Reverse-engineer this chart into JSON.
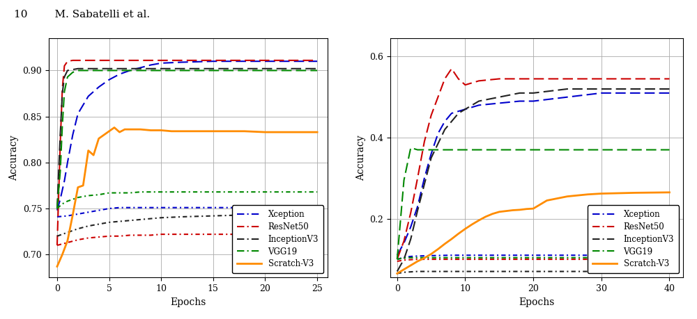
{
  "header_text": "10        M. Sabatelli et al.",
  "chart1": {
    "xlim": [
      -0.8,
      26
    ],
    "ylim": [
      0.675,
      0.935
    ],
    "xticks": [
      0,
      5,
      10,
      15,
      20,
      25
    ],
    "yticks": [
      0.7,
      0.75,
      0.8,
      0.85,
      0.9
    ],
    "xlabel": "Epochs",
    "ylabel": "Accuracy",
    "series": {
      "Xception_high": {
        "color": "#0000cc",
        "x": [
          0,
          0.3,
          0.7,
          1,
          1.5,
          2,
          3,
          4,
          5,
          6,
          7,
          8,
          9,
          10,
          12,
          15,
          18,
          20,
          25
        ],
        "y": [
          0.748,
          0.76,
          0.78,
          0.8,
          0.83,
          0.853,
          0.872,
          0.882,
          0.89,
          0.896,
          0.9,
          0.903,
          0.906,
          0.908,
          0.909,
          0.91,
          0.91,
          0.91,
          0.91
        ],
        "lw": 1.5,
        "dash": [
          7,
          3
        ]
      },
      "Xception_low": {
        "color": "#0000cc",
        "x": [
          0,
          1,
          2,
          3,
          4,
          5,
          6,
          7,
          8,
          9,
          10,
          12,
          15,
          18,
          20,
          25
        ],
        "y": [
          0.741,
          0.742,
          0.744,
          0.746,
          0.748,
          0.75,
          0.751,
          0.751,
          0.751,
          0.751,
          0.751,
          0.751,
          0.751,
          0.751,
          0.751,
          0.751
        ],
        "lw": 1.5,
        "dash": [
          3,
          2,
          1,
          2
        ]
      },
      "ResNet50_high": {
        "color": "#cc0000",
        "x": [
          0,
          0.3,
          0.5,
          0.7,
          1,
          1.5,
          2,
          3,
          5,
          8,
          10,
          15,
          20,
          25
        ],
        "y": [
          0.71,
          0.82,
          0.88,
          0.905,
          0.91,
          0.911,
          0.911,
          0.911,
          0.911,
          0.911,
          0.911,
          0.911,
          0.911,
          0.911
        ],
        "lw": 1.5,
        "dash": [
          7,
          3
        ]
      },
      "ResNet50_low": {
        "color": "#cc0000",
        "x": [
          0,
          1,
          2,
          3,
          4,
          5,
          6,
          7,
          8,
          9,
          10,
          12,
          15,
          18,
          20,
          25
        ],
        "y": [
          0.71,
          0.713,
          0.716,
          0.718,
          0.719,
          0.72,
          0.72,
          0.721,
          0.721,
          0.721,
          0.722,
          0.722,
          0.722,
          0.722,
          0.722,
          0.722
        ],
        "lw": 1.5,
        "dash": [
          3,
          2,
          1,
          2
        ]
      },
      "InceptionV3_high": {
        "color": "#222222",
        "x": [
          0,
          0.3,
          0.5,
          0.7,
          1,
          1.5,
          2,
          3,
          5,
          8,
          10,
          15,
          20,
          25
        ],
        "y": [
          0.75,
          0.83,
          0.875,
          0.893,
          0.9,
          0.901,
          0.902,
          0.902,
          0.902,
          0.902,
          0.902,
          0.902,
          0.902,
          0.902
        ],
        "lw": 1.5,
        "dash": [
          7,
          3
        ]
      },
      "InceptionV3_low": {
        "color": "#222222",
        "x": [
          0,
          1,
          2,
          3,
          4,
          5,
          6,
          7,
          8,
          9,
          10,
          12,
          15,
          18,
          20,
          25
        ],
        "y": [
          0.72,
          0.724,
          0.728,
          0.731,
          0.733,
          0.735,
          0.736,
          0.737,
          0.738,
          0.739,
          0.74,
          0.741,
          0.742,
          0.743,
          0.743,
          0.743
        ],
        "lw": 1.5,
        "dash": [
          3,
          2,
          1,
          2
        ]
      },
      "VGG19_high": {
        "color": "#008800",
        "x": [
          0,
          0.3,
          0.5,
          0.7,
          1,
          1.5,
          2,
          3,
          5,
          8,
          10,
          15,
          20,
          25
        ],
        "y": [
          0.75,
          0.79,
          0.84,
          0.877,
          0.893,
          0.898,
          0.9,
          0.9,
          0.9,
          0.9,
          0.9,
          0.9,
          0.9,
          0.9
        ],
        "lw": 1.5,
        "dash": [
          7,
          3
        ]
      },
      "VGG19_low": {
        "color": "#008800",
        "x": [
          0,
          0.5,
          1,
          1.5,
          2,
          3,
          4,
          5,
          6,
          7,
          8,
          10,
          12,
          15,
          20,
          25
        ],
        "y": [
          0.75,
          0.755,
          0.758,
          0.76,
          0.762,
          0.764,
          0.765,
          0.767,
          0.767,
          0.767,
          0.768,
          0.768,
          0.768,
          0.768,
          0.768,
          0.768
        ],
        "lw": 1.5,
        "dash": [
          3,
          2,
          1,
          2
        ]
      },
      "Scratch_V3": {
        "color": "#ff8c00",
        "x": [
          0,
          0.5,
          1,
          1.5,
          2,
          2.5,
          3,
          3.5,
          4,
          4.5,
          5,
          5.5,
          6,
          6.5,
          7,
          8,
          9,
          10,
          11,
          12,
          15,
          18,
          20,
          25
        ],
        "y": [
          0.687,
          0.7,
          0.715,
          0.743,
          0.773,
          0.775,
          0.813,
          0.808,
          0.826,
          0.83,
          0.834,
          0.838,
          0.833,
          0.836,
          0.836,
          0.836,
          0.835,
          0.835,
          0.834,
          0.834,
          0.834,
          0.834,
          0.833,
          0.833
        ],
        "lw": 2.0,
        "dash": []
      }
    }
  },
  "chart2": {
    "xlim": [
      -1,
      42
    ],
    "ylim": [
      0.055,
      0.645
    ],
    "xticks": [
      0,
      10,
      20,
      30,
      40
    ],
    "yticks": [
      0.2,
      0.4,
      0.6
    ],
    "xlabel": "Epochs",
    "ylabel": "Accuracy",
    "series": {
      "Xception_high": {
        "color": "#0000cc",
        "x": [
          0,
          1,
          2,
          3,
          4,
          5,
          6,
          7,
          8,
          10,
          12,
          15,
          18,
          20,
          25,
          30,
          35,
          40
        ],
        "y": [
          0.11,
          0.14,
          0.18,
          0.23,
          0.3,
          0.36,
          0.41,
          0.44,
          0.46,
          0.47,
          0.48,
          0.485,
          0.49,
          0.49,
          0.5,
          0.51,
          0.51,
          0.51
        ],
        "lw": 1.5,
        "dash": [
          7,
          3
        ]
      },
      "Xception_low": {
        "color": "#0000cc",
        "x": [
          0,
          1,
          2,
          3,
          5,
          8,
          10,
          15,
          20,
          25,
          30,
          35,
          40
        ],
        "y": [
          0.1,
          0.105,
          0.107,
          0.108,
          0.109,
          0.11,
          0.11,
          0.11,
          0.11,
          0.11,
          0.11,
          0.11,
          0.11
        ],
        "lw": 1.5,
        "dash": [
          3,
          2,
          1,
          2
        ]
      },
      "ResNet50_high": {
        "color": "#cc0000",
        "x": [
          0,
          1,
          2,
          3,
          4,
          5,
          6,
          7,
          8,
          9,
          10,
          11,
          12,
          15,
          20,
          25,
          30,
          35,
          40
        ],
        "y": [
          0.1,
          0.145,
          0.215,
          0.3,
          0.39,
          0.455,
          0.5,
          0.545,
          0.57,
          0.545,
          0.53,
          0.535,
          0.54,
          0.545,
          0.545,
          0.545,
          0.545,
          0.545,
          0.545
        ],
        "lw": 1.5,
        "dash": [
          7,
          3
        ]
      },
      "ResNet50_low": {
        "color": "#cc0000",
        "x": [
          0,
          1,
          2,
          3,
          5,
          8,
          10,
          15,
          20,
          25,
          30,
          35,
          40
        ],
        "y": [
          0.095,
          0.098,
          0.099,
          0.1,
          0.1,
          0.1,
          0.1,
          0.1,
          0.1,
          0.1,
          0.1,
          0.1,
          0.1
        ],
        "lw": 1.5,
        "dash": [
          3,
          2,
          1,
          2
        ]
      },
      "InceptionV3_high": {
        "color": "#222222",
        "x": [
          0,
          1,
          2,
          3,
          5,
          7,
          9,
          10,
          12,
          15,
          18,
          20,
          25,
          30,
          35,
          40
        ],
        "y": [
          0.07,
          0.1,
          0.15,
          0.22,
          0.35,
          0.42,
          0.46,
          0.47,
          0.49,
          0.5,
          0.51,
          0.51,
          0.52,
          0.52,
          0.52,
          0.52
        ],
        "lw": 1.5,
        "dash": [
          7,
          3
        ]
      },
      "InceptionV3_low": {
        "color": "#222222",
        "x": [
          0,
          1,
          2,
          3,
          5,
          8,
          10,
          15,
          20,
          25,
          30,
          35,
          40
        ],
        "y": [
          0.065,
          0.068,
          0.069,
          0.07,
          0.07,
          0.07,
          0.07,
          0.07,
          0.07,
          0.07,
          0.07,
          0.07,
          0.07
        ],
        "lw": 1.5,
        "dash": [
          3,
          2,
          1,
          2
        ]
      },
      "VGG19_high": {
        "color": "#008800",
        "x": [
          0,
          1,
          2,
          3,
          4,
          5,
          7,
          10,
          15,
          20,
          25,
          30,
          35,
          40
        ],
        "y": [
          0.1,
          0.295,
          0.375,
          0.37,
          0.37,
          0.37,
          0.37,
          0.37,
          0.37,
          0.37,
          0.37,
          0.37,
          0.37,
          0.37
        ],
        "lw": 1.5,
        "dash": [
          7,
          3
        ]
      },
      "VGG19_low": {
        "color": "#008800",
        "x": [
          0,
          1,
          2,
          3,
          5,
          8,
          10,
          15,
          20,
          25,
          30,
          35,
          40
        ],
        "y": [
          0.1,
          0.103,
          0.104,
          0.104,
          0.104,
          0.104,
          0.104,
          0.104,
          0.104,
          0.104,
          0.104,
          0.104,
          0.104
        ],
        "lw": 1.5,
        "dash": [
          3,
          2,
          1,
          2
        ]
      },
      "Scratch_V3": {
        "color": "#ff8c00",
        "x": [
          0,
          1,
          2,
          3,
          4,
          5,
          6,
          7,
          8,
          9,
          10,
          11,
          12,
          13,
          14,
          15,
          16,
          17,
          18,
          19,
          20,
          22,
          25,
          28,
          30,
          35,
          40
        ],
        "y": [
          0.065,
          0.075,
          0.085,
          0.095,
          0.103,
          0.113,
          0.125,
          0.138,
          0.15,
          0.163,
          0.175,
          0.186,
          0.196,
          0.205,
          0.212,
          0.217,
          0.219,
          0.221,
          0.222,
          0.224,
          0.225,
          0.245,
          0.255,
          0.26,
          0.262,
          0.264,
          0.265
        ],
        "lw": 2.0,
        "dash": []
      }
    }
  },
  "legend_entries": [
    {
      "label": "Xception",
      "color": "#0000cc"
    },
    {
      "label": "ResNet50",
      "color": "#cc0000"
    },
    {
      "label": "InceptionV3",
      "color": "#222222"
    },
    {
      "label": "VGG19",
      "color": "#008800"
    },
    {
      "label": "Scratch-V3",
      "color": "#ff8c00"
    }
  ]
}
